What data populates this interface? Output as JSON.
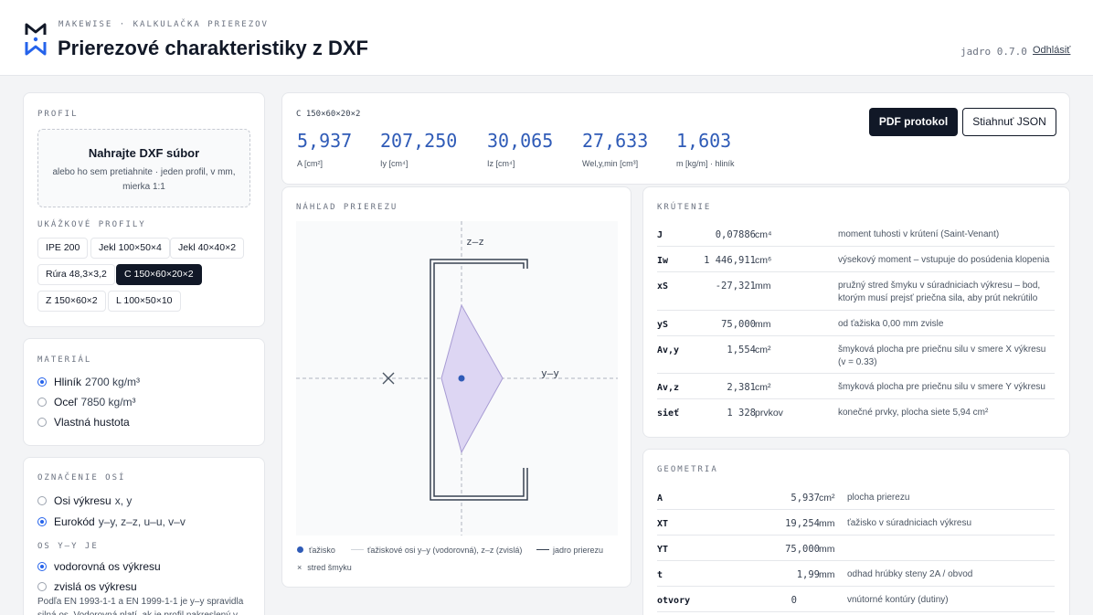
{
  "header": {
    "eyebrow": "MAKEWISE · KALKULAČKA PRIEREZOV",
    "title": "Prierezové charakteristiky z DXF",
    "version": "jadro 0.7.0",
    "logout": "Odhlásiť"
  },
  "profile": {
    "label": "PROFIL",
    "upload_title": "Nahrajte DXF súbor",
    "upload_sub": "alebo ho sem pretiahnite · jeden profil, v mm, mierka 1:1",
    "samples_label": "UKÁŽKOVÉ PROFILY",
    "samples": [
      "IPE 200",
      "Jekl 100×50×4",
      "Jekl 40×40×2",
      "Rúra 48,3×3,2",
      "C 150×60×20×2",
      "Z 150×60×2",
      "L 100×50×10"
    ],
    "active_sample": "C 150×60×20×2"
  },
  "material": {
    "label": "MATERIÁL",
    "options": [
      {
        "name": "Hliník",
        "density": "2700 kg/m³",
        "selected": true
      },
      {
        "name": "Oceľ",
        "density": "7850 kg/m³",
        "selected": false
      },
      {
        "name": "Vlastná hustota",
        "density": "",
        "selected": false
      }
    ]
  },
  "axes": {
    "label": "OZNAČENIE OSÍ",
    "options": [
      {
        "name": "Osi výkresu",
        "extra": "x, y",
        "selected": false
      },
      {
        "name": "Eurokód",
        "extra": "y–y, z–z, u–u, v–v",
        "selected": true
      }
    ],
    "yy_label": "OS Y–Y JE",
    "yy_options": [
      {
        "name": "vodorovná os výkresu",
        "selected": true
      },
      {
        "name": "zvislá os výkresu",
        "selected": false
      }
    ],
    "note": "Podľa EN 1993-1-1 a EN 1999-1-1 je y–y spravidla silná os. Vodorovná platí, ak je profil nakreslený v"
  },
  "summary": {
    "profile_name": "C 150×60×20×2",
    "metrics": [
      {
        "value": "5,937",
        "label": "A [cm²]"
      },
      {
        "value": "207,250",
        "label": "Iy [cm⁴]"
      },
      {
        "value": "30,065",
        "label": "Iz [cm⁴]"
      },
      {
        "value": "27,633",
        "label": "Wel,y,min [cm³]"
      },
      {
        "value": "1,603",
        "label": "m [kg/m] · hliník"
      }
    ],
    "pdf_button": "PDF protokol",
    "json_button": "Stiahnuť JSON"
  },
  "preview": {
    "label": "NÁHĽAD PRIEREZU",
    "axis_z": "z–z",
    "axis_y": "y–y",
    "legend_centroid": "ťažisko",
    "legend_axes": "ťažiskové osi y–y (vodorovná), z–z (zvislá)",
    "legend_core": "jadro prierezu",
    "legend_shear": "stred šmyku",
    "colors": {
      "accent": "#2f5bb7",
      "core_fill": "#ddd6f3",
      "core_stroke": "#a79bd3"
    }
  },
  "torsion": {
    "label": "KRÚTENIE",
    "rows": [
      {
        "key": "J",
        "value": "0,07886",
        "unit": "cm⁴",
        "desc": "moment tuhosti v krútení (Saint-Venant)"
      },
      {
        "key": "Iw",
        "value": "1 446,911",
        "unit": "cm⁶",
        "desc": "výsekový moment – vstupuje do posúdenia klopenia"
      },
      {
        "key": "xS",
        "value": "-27,321",
        "unit": "mm",
        "desc": "pružný stred šmyku v súradniciach výkresu – bod, ktorým musí prejsť priečna sila, aby prút nekrútilo"
      },
      {
        "key": "yS",
        "value": "75,000",
        "unit": "mm",
        "desc": "od ťažiska 0,00 mm zvisle"
      },
      {
        "key": "Av,y",
        "value": "1,554",
        "unit": "cm²",
        "desc": "šmyková plocha pre priečnu silu v smere X výkresu (v = 0.33)"
      },
      {
        "key": "Av,z",
        "value": "2,381",
        "unit": "cm²",
        "desc": "šmyková plocha pre priečnu silu v smere Y výkresu"
      },
      {
        "key": "sieť",
        "value": "1 328",
        "unit": "prvkov",
        "desc": "konečné prvky, plocha siete 5,94 cm²"
      }
    ]
  },
  "geometry": {
    "label": "GEOMETRIA",
    "rows": [
      {
        "key": "A",
        "value": "5,937",
        "unit": "cm²",
        "desc": "plocha prierezu"
      },
      {
        "key": "XT",
        "value": "19,254",
        "unit": "mm",
        "desc": "ťažisko v súradniciach výkresu"
      },
      {
        "key": "YT",
        "value": "75,000",
        "unit": "mm",
        "desc": ""
      },
      {
        "key": "t",
        "value": "1,99",
        "unit": "mm",
        "desc": "odhad hrúbky steny 2A / obvod"
      },
      {
        "key": "otvory",
        "value": "0",
        "unit": "",
        "desc": "vnútorné kontúry (dutiny)"
      }
    ]
  }
}
